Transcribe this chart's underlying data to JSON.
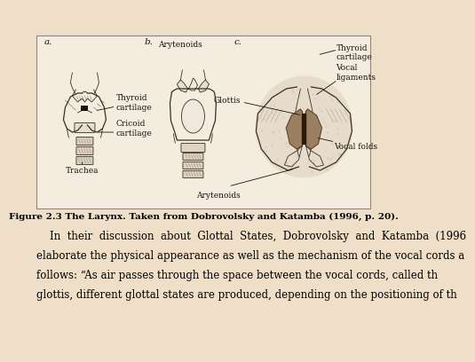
{
  "figure_caption": "Figure 2.3 The Larynx. Taken from Dobrovolsky and Katamba (1996, p. 20).",
  "body_text_line1": "    In  their  discussion  about  Glottal  States,  Dobrovolsky  and  Katamba  (1996",
  "body_text_line2": "elaborate the physical appearance as well as the mechanism of the vocal cords a",
  "body_text_line3": "follows: “As air passes through the space between the vocal cords, called th",
  "body_text_line4": "glottis, different glottal states are produced, depending on the positioning of th",
  "bg_color": "#f0dfc8",
  "box_bg": "#f7ede0",
  "box_edge": "#555555",
  "label_a": "a.",
  "label_b": "b.",
  "label_c": "c.",
  "label_arytenoids_top": "Arytenoids",
  "label_thyroid_cartilage_left": "Thyroid\ncartilage",
  "label_cricoid_cartilage": "Cricoid\ncartilage",
  "label_trachea": "Trachea",
  "label_arytenoids_bottom": "Arytenoids",
  "label_glottis": "Glottis",
  "label_thyroid_cartilage_right": "Thyroid\ncartilage",
  "label_vocal_ligaments": "Vocal\nligaments",
  "label_vocal_folds": "Vocal folds",
  "caption_fontsize": 7.5,
  "body_fontsize": 8.5,
  "label_fontsize": 6.5,
  "line_color": "#3a3020",
  "diagram_fill": "#e8d8c0",
  "diagram_dark": "#b0956a",
  "diagram_hatched": "#c8b898"
}
